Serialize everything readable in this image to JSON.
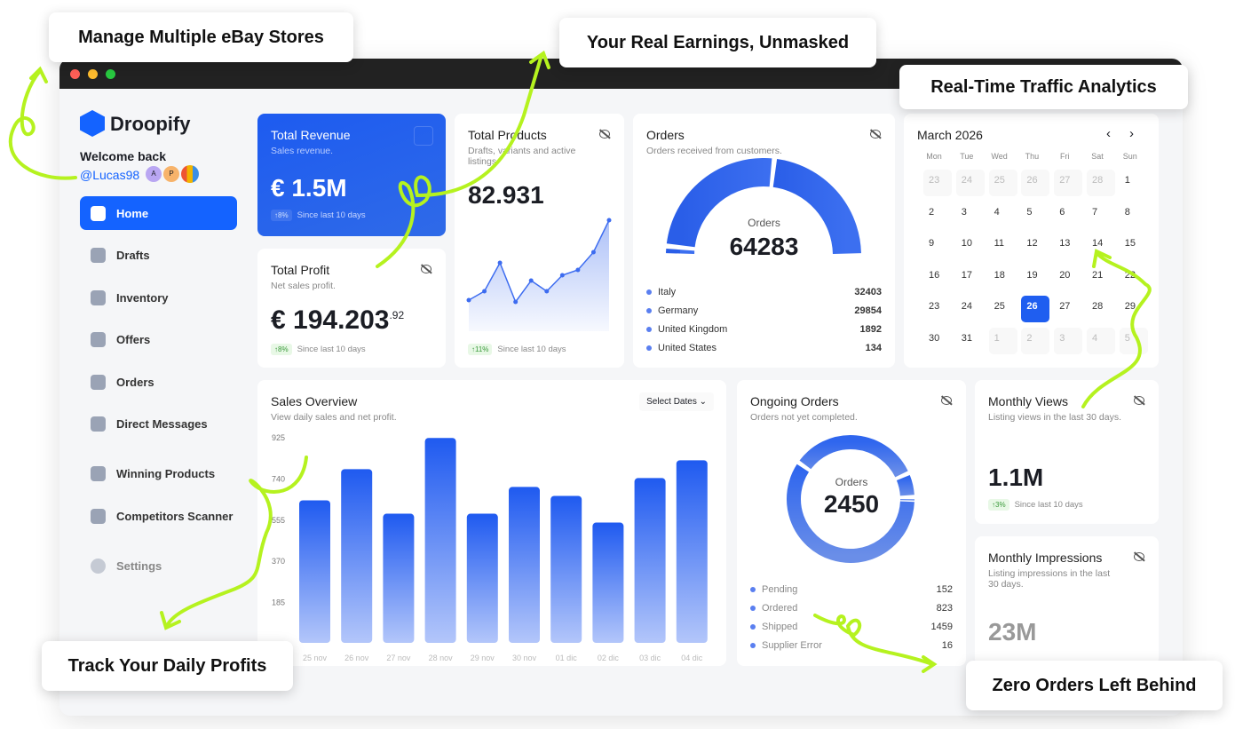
{
  "callouts": {
    "stores": "Manage Multiple eBay Stores",
    "earnings": "Your Real Earnings, Unmasked",
    "traffic": "Real-Time Traffic Analytics",
    "profits": "Track Your Daily Profits",
    "orders": "Zero Orders Left Behind"
  },
  "brand": {
    "name": "Droopify",
    "welcome": "Welcome back",
    "user": "@Lucas98",
    "avatars": [
      "A",
      "P"
    ]
  },
  "sidebar": {
    "items": [
      {
        "label": "Home",
        "active": true
      },
      {
        "label": "Drafts"
      },
      {
        "label": "Inventory"
      },
      {
        "label": "Offers"
      },
      {
        "label": "Orders"
      },
      {
        "label": "Direct Messages"
      },
      {
        "label": "Winning Products"
      },
      {
        "label": "Competitors Scanner"
      },
      {
        "label": "Settings"
      }
    ]
  },
  "revenue": {
    "title": "Total Revenue",
    "subtitle": "Sales revenue.",
    "value": "€ 1.5M",
    "badge": "↑8%",
    "since": "Since last 10 days"
  },
  "profit": {
    "title": "Total Profit",
    "subtitle": "Net sales profit.",
    "value": "€ 194.203",
    "decimals": ".92",
    "badge": "↑8%",
    "since": "Since last 10 days"
  },
  "products": {
    "title": "Total Products",
    "subtitle": "Drafts, variants and active listings.",
    "value": "82.931",
    "badge": "↑11%",
    "since": "Since last 10 days",
    "sparkline": [
      30,
      40,
      72,
      28,
      52,
      40,
      58,
      64,
      84,
      120
    ]
  },
  "orders": {
    "title": "Orders",
    "subtitle": "Orders received from customers.",
    "center_label": "Orders",
    "total": "64283",
    "countries": [
      {
        "name": "Italy",
        "value": 32403
      },
      {
        "name": "Germany",
        "value": 29854
      },
      {
        "name": "United Kingdom",
        "value": 1892
      },
      {
        "name": "United States",
        "value": 134
      }
    ]
  },
  "calendar": {
    "month": "March 2026",
    "weekdays": [
      "Mon",
      "Tue",
      "Wed",
      "Thu",
      "Fri",
      "Sat",
      "Sun"
    ],
    "selected": 26
  },
  "sales": {
    "title": "Sales Overview",
    "subtitle": "View daily sales and net profit.",
    "select_label": "Select Dates"
  },
  "chart_data": {
    "type": "bar",
    "categories": [
      "25 nov",
      "26 nov",
      "27 nov",
      "28 nov",
      "29 nov",
      "30 nov",
      "01 dic",
      "02 dic",
      "03 dic",
      "04 dic"
    ],
    "values": [
      640,
      780,
      580,
      920,
      580,
      700,
      660,
      540,
      740,
      820
    ],
    "yticks": [
      925,
      740,
      555,
      370,
      185
    ],
    "ylim": [
      0,
      925
    ]
  },
  "ongoing": {
    "title": "Ongoing Orders",
    "subtitle": "Orders not yet completed.",
    "center_label": "Orders",
    "total": "2450",
    "statuses": [
      {
        "name": "Pending",
        "value": 152
      },
      {
        "name": "Ordered",
        "value": 823
      },
      {
        "name": "Shipped",
        "value": 1459
      },
      {
        "name": "Supplier Error",
        "value": 16
      }
    ]
  },
  "views": {
    "title": "Monthly Views",
    "subtitle": "Listing views in the last 30 days.",
    "value": "1.1M",
    "badge": "↑3%",
    "since": "Since last 10 days"
  },
  "impressions": {
    "title": "Monthly Impressions",
    "subtitle": "Listing impressions in the last 30 days.",
    "value": "23M"
  },
  "colors": {
    "accent": "#1463ff",
    "highlight": "#b5f21f"
  }
}
